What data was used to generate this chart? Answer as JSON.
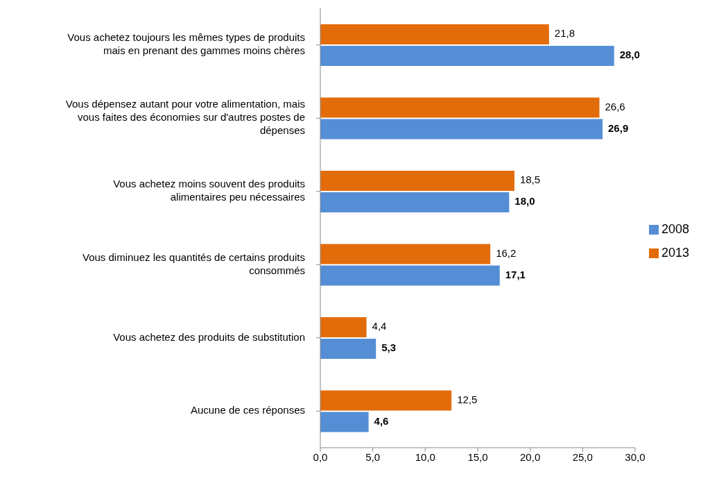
{
  "chart_data": {
    "type": "bar",
    "orientation": "horizontal",
    "categories": [
      "Vous achetez toujours les mêmes types de produits mais en prenant des gammes moins chères",
      "Vous dépensez autant pour votre alimentation, mais vous faites des économies sur d'autres postes de dépenses",
      "Vous achetez moins souvent des produits alimentaires peu nécessaires",
      "Vous diminuez les quantités de certains produits consommés",
      "Vous achetez des produits de substitution",
      "Aucune de ces réponses"
    ],
    "series": [
      {
        "name": "2013",
        "color": "#e36c0a",
        "values": [
          21.8,
          26.6,
          18.5,
          16.2,
          4.4,
          12.5
        ],
        "value_labels": [
          "21,8",
          "26,6",
          "18,5",
          "16,2",
          "4,4",
          "12,5"
        ]
      },
      {
        "name": "2008",
        "color": "#558ed5",
        "values": [
          28.0,
          26.9,
          18.0,
          17.1,
          5.3,
          4.6
        ],
        "value_labels": [
          "28,0",
          "26,9",
          "18,0",
          "17,1",
          "5,3",
          "4,6"
        ]
      }
    ],
    "xlim": [
      0,
      30
    ],
    "xticks": [
      {
        "value": 0,
        "label": "0,0"
      },
      {
        "value": 5,
        "label": "5,0"
      },
      {
        "value": 10,
        "label": "10,0"
      },
      {
        "value": 15,
        "label": "15,0"
      },
      {
        "value": 20,
        "label": "20,0"
      },
      {
        "value": 25,
        "label": "25,0"
      },
      {
        "value": 30,
        "label": "30,0"
      }
    ],
    "grid": false,
    "legend": "right"
  }
}
